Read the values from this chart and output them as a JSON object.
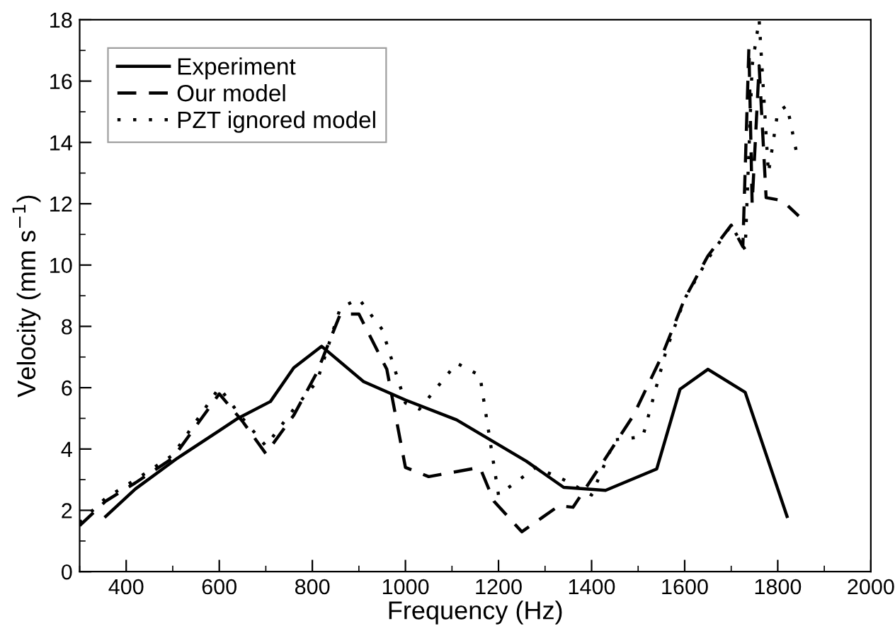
{
  "chart_data": {
    "type": "line",
    "xlabel": "Frequency (Hz)",
    "ylabel": "Velocity (mm s$^{−1}$)",
    "xlim": [
      300,
      2000
    ],
    "ylim": [
      0,
      18
    ],
    "xticks": [
      400,
      600,
      800,
      1000,
      1200,
      1400,
      1600,
      1800,
      2000
    ],
    "yticks": [
      0,
      2,
      4,
      6,
      8,
      10,
      12,
      14,
      16,
      18
    ],
    "grid": false,
    "legend": "top left",
    "series": [
      {
        "name": "Experiment",
        "color": "#000000",
        "line_style": "solid",
        "x": [
          356,
          420,
          510,
          600,
          640,
          710,
          760,
          820,
          910,
          1000,
          1110,
          1260,
          1340,
          1430,
          1540,
          1590,
          1650,
          1730,
          1820
        ],
        "values": [
          1.8,
          2.7,
          3.7,
          4.6,
          5.0,
          5.55,
          6.65,
          7.35,
          6.2,
          5.6,
          4.95,
          3.6,
          2.75,
          2.65,
          3.35,
          5.95,
          6.6,
          5.85,
          1.8
        ]
      },
      {
        "name": "Our model",
        "color": "#000000",
        "line_style": "dashed",
        "x": [
          300,
          356,
          420,
          500,
          600,
          650,
          700,
          760,
          810,
          860,
          900,
          960,
          1000,
          1050,
          1160,
          1190,
          1250,
          1330,
          1360,
          1430,
          1490,
          1550,
          1600,
          1650,
          1700,
          1725,
          1738,
          1745,
          1760,
          1775,
          1810,
          1845
        ],
        "values": [
          1.5,
          2.3,
          2.9,
          3.7,
          5.8,
          4.9,
          3.85,
          5.1,
          6.5,
          8.4,
          8.4,
          6.6,
          3.4,
          3.1,
          3.4,
          2.3,
          1.3,
          2.15,
          2.1,
          3.7,
          5.1,
          7.0,
          8.9,
          10.3,
          11.3,
          10.6,
          17.1,
          12.0,
          16.5,
          12.2,
          12.1,
          11.6
        ]
      },
      {
        "name": "PZT ignored model",
        "color": "#000000",
        "line_style": "dotted",
        "x": [
          300,
          356,
          420,
          500,
          600,
          650,
          700,
          760,
          810,
          860,
          900,
          950,
          1000,
          1030,
          1110,
          1160,
          1200,
          1280,
          1340,
          1400,
          1450,
          1510,
          1560,
          1600,
          1650,
          1700,
          1730,
          1745,
          1760,
          1780,
          1800,
          1820,
          1840
        ],
        "values": [
          1.6,
          2.4,
          3.0,
          3.8,
          6.0,
          5.0,
          4.1,
          5.3,
          6.2,
          8.6,
          8.9,
          7.9,
          5.5,
          5.3,
          6.8,
          6.4,
          2.5,
          3.4,
          3.0,
          2.5,
          4.3,
          4.4,
          7.2,
          8.9,
          10.2,
          11.3,
          10.5,
          16.5,
          18.0,
          13.0,
          15.0,
          15.2,
          13.7
        ]
      }
    ]
  }
}
